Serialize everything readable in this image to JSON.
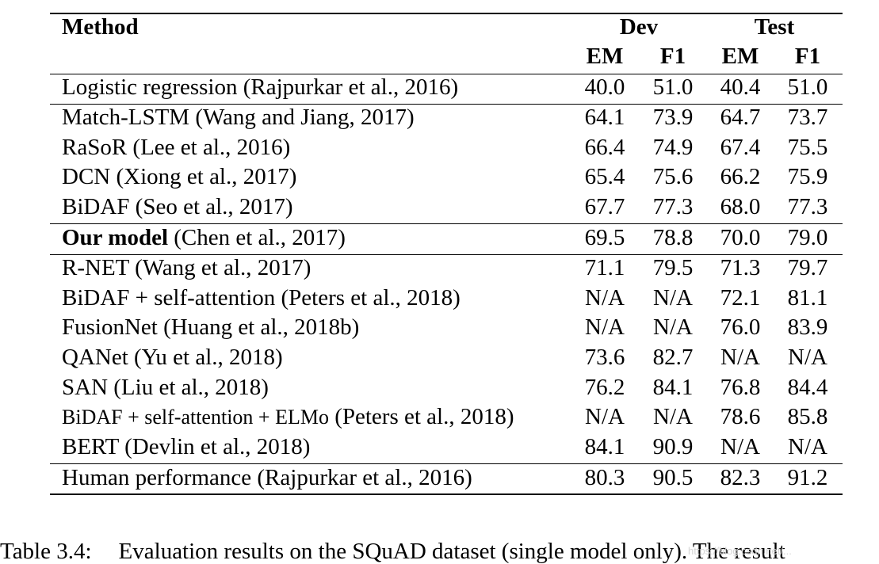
{
  "table": {
    "header": {
      "method": "Method",
      "dev": "Dev",
      "test": "Test",
      "em": "EM",
      "f1": "F1"
    },
    "rows": [
      {
        "method": "Logistic regression (Rajpurkar et al., 2016)",
        "dev_em": "40.0",
        "dev_f1": "51.0",
        "test_em": "40.4",
        "test_f1": "51.0"
      },
      {
        "method": "Match-LSTM (Wang and Jiang, 2017)",
        "dev_em": "64.1",
        "dev_f1": "73.9",
        "test_em": "64.7",
        "test_f1": "73.7"
      },
      {
        "method": "RaSoR (Lee et al., 2016)",
        "dev_em": "66.4",
        "dev_f1": "74.9",
        "test_em": "67.4",
        "test_f1": "75.5"
      },
      {
        "method": "DCN (Xiong et al., 2017)",
        "dev_em": "65.4",
        "dev_f1": "75.6",
        "test_em": "66.2",
        "test_f1": "75.9"
      },
      {
        "method": "BiDAF (Seo et al., 2017)",
        "dev_em": "67.7",
        "dev_f1": "77.3",
        "test_em": "68.0",
        "test_f1": "77.3"
      },
      {
        "method_bold": "Our model",
        "method": " (Chen et al., 2017)",
        "dev_em": "69.5",
        "dev_f1": "78.8",
        "test_em": "70.0",
        "test_f1": "79.0"
      },
      {
        "method": "R-NET (Wang et al., 2017)",
        "dev_em": "71.1",
        "dev_f1": "79.5",
        "test_em": "71.3",
        "test_f1": "79.7"
      },
      {
        "method": "BiDAF + self-attention (Peters et al., 2018)",
        "dev_em": "N/A",
        "dev_f1": "N/A",
        "test_em": "72.1",
        "test_f1": "81.1"
      },
      {
        "method": "FusionNet (Huang et al., 2018b)",
        "dev_em": "N/A",
        "dev_f1": "N/A",
        "test_em": "76.0",
        "test_f1": "83.9"
      },
      {
        "method": "QANet (Yu et al., 2018)",
        "dev_em": "73.6",
        "dev_f1": "82.7",
        "test_em": "N/A",
        "test_f1": "N/A"
      },
      {
        "method": "SAN (Liu et al., 2018)",
        "dev_em": "76.2",
        "dev_f1": "84.1",
        "test_em": "76.8",
        "test_f1": "84.4"
      },
      {
        "method_small": "BiDAF + self-attention + ELMo",
        "method": " (Peters et al., 2018)",
        "dev_em": "N/A",
        "dev_f1": "N/A",
        "test_em": "78.6",
        "test_f1": "85.8"
      },
      {
        "method": "BERT (Devlin et al., 2018)",
        "dev_em": "84.1",
        "dev_f1": "90.9",
        "test_em": "N/A",
        "test_f1": "N/A"
      },
      {
        "method": "Human performance (Rajpurkar et al., 2016)",
        "dev_em": "80.3",
        "dev_f1": "90.5",
        "test_em": "82.3",
        "test_f1": "91.2"
      }
    ]
  },
  "caption": {
    "label": "Table 3.4:",
    "text": "Evaluation results on the SQuAD dataset (single model only).  The result"
  },
  "watermark": "https://blog.csdn.net/..."
}
